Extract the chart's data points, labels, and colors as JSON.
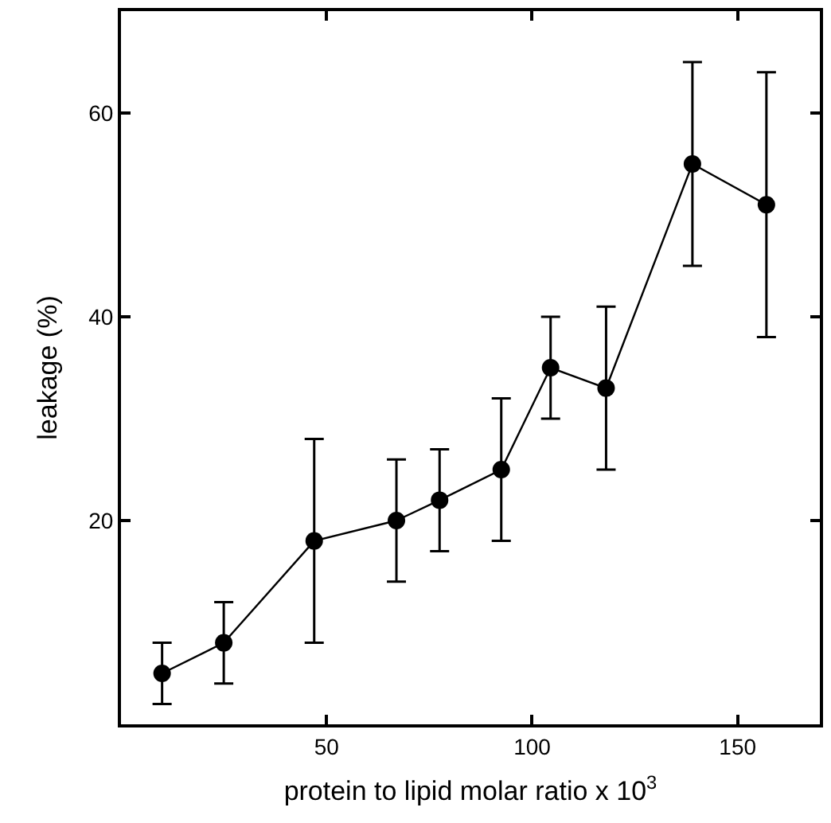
{
  "chart_data": {
    "type": "line",
    "xlabel": "protein to lipid molar ratio x 10$^{3}$",
    "ylabel": "leakage (%)",
    "x": [
      10,
      25,
      47,
      67,
      77.5,
      92.5,
      104.5,
      118,
      139,
      157
    ],
    "series": [
      {
        "color": "#000000",
        "values": [
          5,
          8,
          18,
          20,
          22,
          25,
          35,
          33,
          55,
          51
        ],
        "errors": [
          [
            2,
            8
          ],
          [
            4,
            12
          ],
          [
            8,
            28
          ],
          [
            14,
            26
          ],
          [
            17,
            27
          ],
          [
            18,
            32
          ],
          [
            30,
            40
          ],
          [
            25,
            41
          ],
          [
            45,
            65
          ],
          [
            38,
            64
          ]
        ]
      }
    ],
    "xlim": [
      0,
      170
    ],
    "xticks": [
      50,
      100,
      150
    ],
    "ylim": [
      0,
      70
    ],
    "yticks": [
      20,
      40,
      60
    ],
    "legend": false,
    "marker": "circle",
    "line_style": "solid"
  }
}
